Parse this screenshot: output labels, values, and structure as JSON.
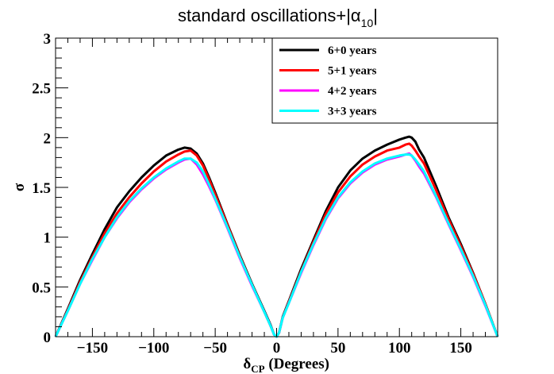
{
  "chart_data": {
    "type": "line",
    "title_main": "standard oscillations+|α",
    "title_sub": "10",
    "title_end": "|",
    "xlabel_symbol": "δ",
    "xlabel_sub": "CP",
    "xlabel_rest": " (Degrees)",
    "ylabel": "σ",
    "xlim": [
      -180,
      180
    ],
    "ylim": [
      0,
      3
    ],
    "xticks": [
      -150,
      -100,
      -50,
      0,
      50,
      100,
      150
    ],
    "xtick_labels": [
      "−150",
      "−100",
      "−50",
      "0",
      "50",
      "100",
      "150"
    ],
    "yticks": [
      0,
      0.5,
      1,
      1.5,
      2,
      2.5,
      3
    ],
    "ytick_labels": [
      "0",
      "0.5",
      "1",
      "1.5",
      "2",
      "2.5",
      "3"
    ],
    "grid": false,
    "legend_position": "top-right",
    "series": [
      {
        "name": "6+0 years",
        "color": "#000000",
        "x": [
          -180,
          -170,
          -160,
          -150,
          -140,
          -130,
          -120,
          -110,
          -100,
          -90,
          -80,
          -75,
          -70,
          -65,
          -60,
          -55,
          -50,
          -40,
          -30,
          -20,
          -10,
          -5,
          -2,
          0,
          2,
          5,
          10,
          20,
          30,
          40,
          50,
          60,
          70,
          80,
          90,
          100,
          105,
          108,
          110,
          113,
          116,
          120,
          130,
          140,
          150,
          160,
          170,
          180
        ],
        "values": [
          0.0,
          0.28,
          0.57,
          0.83,
          1.08,
          1.3,
          1.46,
          1.6,
          1.72,
          1.82,
          1.88,
          1.9,
          1.89,
          1.84,
          1.74,
          1.6,
          1.45,
          1.13,
          0.82,
          0.53,
          0.26,
          0.12,
          0.02,
          0.0,
          0.04,
          0.2,
          0.36,
          0.68,
          0.97,
          1.26,
          1.5,
          1.67,
          1.79,
          1.87,
          1.93,
          1.98,
          2.0,
          2.01,
          2.0,
          1.96,
          1.88,
          1.8,
          1.51,
          1.2,
          0.93,
          0.64,
          0.33,
          0.0
        ]
      },
      {
        "name": "5+1 years",
        "color": "#ff0000",
        "x": [
          -180,
          -170,
          -160,
          -150,
          -140,
          -130,
          -120,
          -110,
          -100,
          -90,
          -80,
          -75,
          -70,
          -65,
          -60,
          -55,
          -50,
          -40,
          -30,
          -20,
          -10,
          -5,
          -2,
          0,
          2,
          5,
          10,
          20,
          30,
          40,
          50,
          60,
          70,
          80,
          90,
          100,
          105,
          108,
          110,
          113,
          116,
          120,
          130,
          140,
          150,
          160,
          170,
          180
        ],
        "values": [
          0.0,
          0.27,
          0.55,
          0.8,
          1.04,
          1.24,
          1.4,
          1.54,
          1.66,
          1.76,
          1.83,
          1.86,
          1.87,
          1.82,
          1.72,
          1.58,
          1.43,
          1.12,
          0.81,
          0.52,
          0.25,
          0.11,
          0.02,
          0.0,
          0.04,
          0.19,
          0.35,
          0.66,
          0.95,
          1.23,
          1.45,
          1.61,
          1.73,
          1.81,
          1.87,
          1.9,
          1.93,
          1.94,
          1.92,
          1.87,
          1.81,
          1.74,
          1.47,
          1.18,
          0.91,
          0.63,
          0.33,
          0.0
        ]
      },
      {
        "name": "4+2 years",
        "color": "#ff00ff",
        "x": [
          -180,
          -170,
          -160,
          -150,
          -140,
          -130,
          -120,
          -110,
          -100,
          -90,
          -80,
          -75,
          -70,
          -65,
          -60,
          -55,
          -50,
          -40,
          -30,
          -20,
          -10,
          -5,
          -2,
          0,
          2,
          5,
          10,
          20,
          30,
          40,
          50,
          60,
          70,
          80,
          90,
          100,
          105,
          108,
          110,
          113,
          116,
          120,
          130,
          140,
          150,
          160,
          170,
          180
        ],
        "values": [
          0.0,
          0.26,
          0.53,
          0.77,
          1.0,
          1.19,
          1.35,
          1.48,
          1.59,
          1.68,
          1.75,
          1.78,
          1.79,
          1.73,
          1.63,
          1.51,
          1.38,
          1.09,
          0.79,
          0.51,
          0.25,
          0.11,
          0.02,
          0.0,
          0.04,
          0.19,
          0.34,
          0.64,
          0.92,
          1.18,
          1.39,
          1.54,
          1.65,
          1.73,
          1.78,
          1.81,
          1.83,
          1.84,
          1.82,
          1.77,
          1.71,
          1.64,
          1.4,
          1.13,
          0.87,
          0.6,
          0.31,
          0.0
        ]
      },
      {
        "name": "3+3 years",
        "color": "#00ffff",
        "x": [
          -180,
          -170,
          -160,
          -150,
          -140,
          -130,
          -120,
          -110,
          -100,
          -90,
          -80,
          -75,
          -70,
          -65,
          -60,
          -55,
          -50,
          -40,
          -30,
          -20,
          -10,
          -5,
          -2,
          0,
          2,
          5,
          10,
          20,
          30,
          40,
          50,
          60,
          70,
          80,
          90,
          100,
          105,
          108,
          110,
          113,
          116,
          120,
          130,
          140,
          150,
          160,
          170,
          180
        ],
        "values": [
          0.0,
          0.26,
          0.53,
          0.78,
          1.0,
          1.2,
          1.36,
          1.49,
          1.6,
          1.69,
          1.76,
          1.79,
          1.79,
          1.75,
          1.66,
          1.53,
          1.39,
          1.1,
          0.8,
          0.52,
          0.25,
          0.11,
          0.02,
          0.0,
          0.04,
          0.19,
          0.34,
          0.65,
          0.93,
          1.19,
          1.4,
          1.55,
          1.66,
          1.74,
          1.79,
          1.82,
          1.83,
          1.83,
          1.82,
          1.78,
          1.73,
          1.66,
          1.41,
          1.14,
          0.88,
          0.61,
          0.32,
          0.0
        ]
      }
    ]
  }
}
